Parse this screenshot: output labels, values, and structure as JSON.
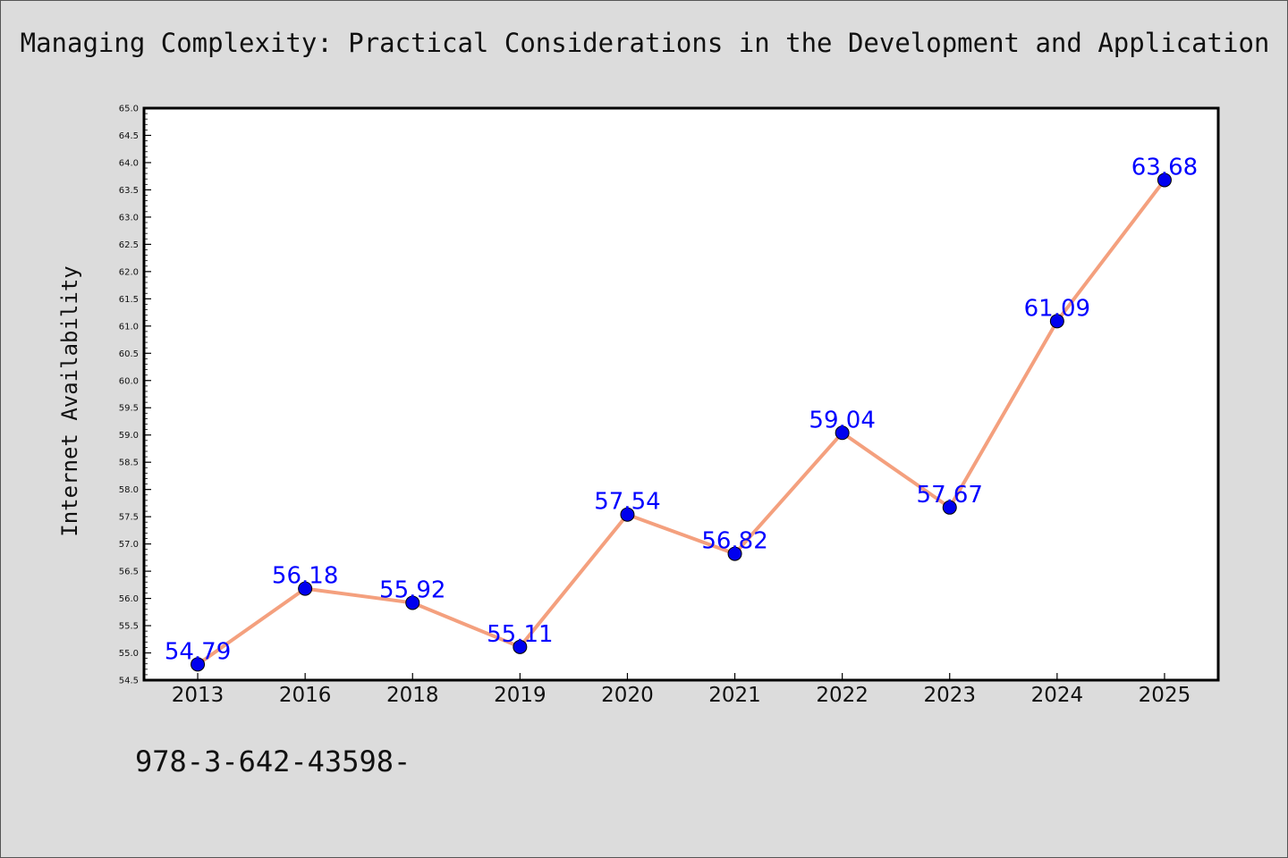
{
  "chart_data": {
    "type": "line",
    "title": "Managing Complexity: Practical Considerations in the Development and Application",
    "xlabel": "",
    "ylabel": "Internet Availability",
    "categories": [
      "2013",
      "2016",
      "2018",
      "2019",
      "2020",
      "2021",
      "2022",
      "2023",
      "2024",
      "2025"
    ],
    "series": [
      {
        "values": [
          54.79,
          56.18,
          55.92,
          55.11,
          57.54,
          56.82,
          59.04,
          57.67,
          61.09,
          63.68
        ],
        "labels": [
          "54.79",
          "56.18",
          "55.92",
          "55.11",
          "57.54",
          "56.82",
          "59.04",
          "57.67",
          "61.09",
          "63.68"
        ]
      }
    ],
    "ylim": [
      54.5,
      65.0
    ],
    "yticks": [
      "54.5",
      "55.0",
      "55.5",
      "56.0",
      "56.5",
      "57.0",
      "57.5",
      "58.0",
      "58.5",
      "59.0",
      "59.5",
      "60.0",
      "60.5",
      "61.0",
      "61.5",
      "62.0",
      "62.5",
      "63.0",
      "63.5",
      "64.0",
      "64.5",
      "65.0"
    ],
    "grid": false,
    "colors": {
      "line": "#f4a07e",
      "marker": "#0000ee",
      "label": "#0000ff",
      "background": "#dcdcdc",
      "plot_background": "#ffffff"
    }
  },
  "footer": {
    "code": "978-3-642-43598-"
  }
}
